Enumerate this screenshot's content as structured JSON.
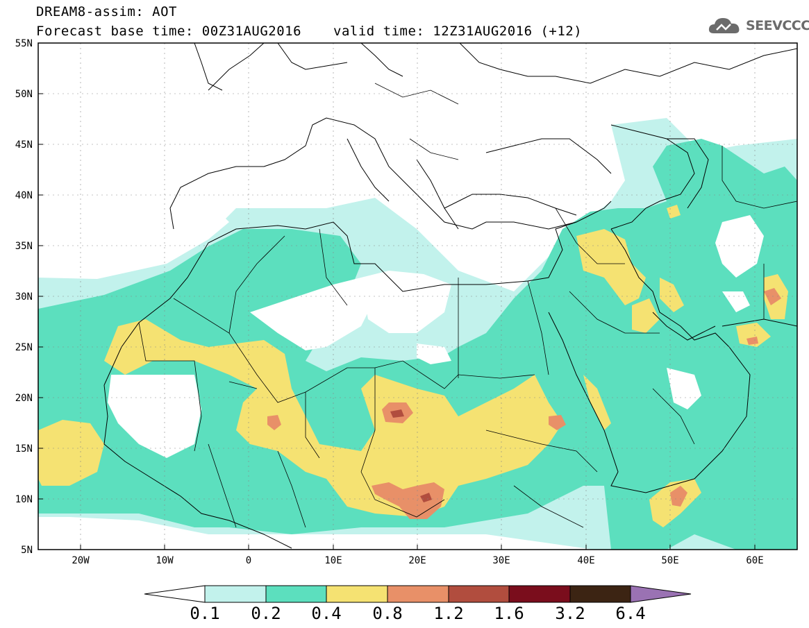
{
  "header": {
    "title": "DREAM8-assim: AOT",
    "base_time": "Forecast base time: 00Z31AUG2016",
    "valid_time": "valid time: 12Z31AUG2016 (+12)"
  },
  "logo": {
    "text": "SEEVCCC",
    "icon": "cloud-icon"
  },
  "map": {
    "lat_labels": [
      "55N",
      "50N",
      "45N",
      "40N",
      "35N",
      "30N",
      "25N",
      "20N",
      "15N",
      "10N",
      "5N"
    ],
    "lon_labels": [
      "20W",
      "10W",
      "0",
      "10E",
      "20E",
      "30E",
      "40E",
      "50E",
      "60E"
    ],
    "colors": {
      "lightcyan": "#c2f2ec",
      "green": "#5cdfbe",
      "yellow": "#f5e272",
      "orange": "#e89068",
      "darkred": "#b14d3e"
    }
  },
  "colorbar": {
    "labels": [
      "0.1",
      "0.2",
      "0.4",
      "0.8",
      "1.2",
      "1.6",
      "3.2",
      "6.4"
    ],
    "colors": [
      "#c2f2ec",
      "#5cdfbe",
      "#f5e272",
      "#e89068",
      "#b14d3e",
      "#7a0d1c",
      "#3c2413",
      "#9a72b3"
    ]
  }
}
